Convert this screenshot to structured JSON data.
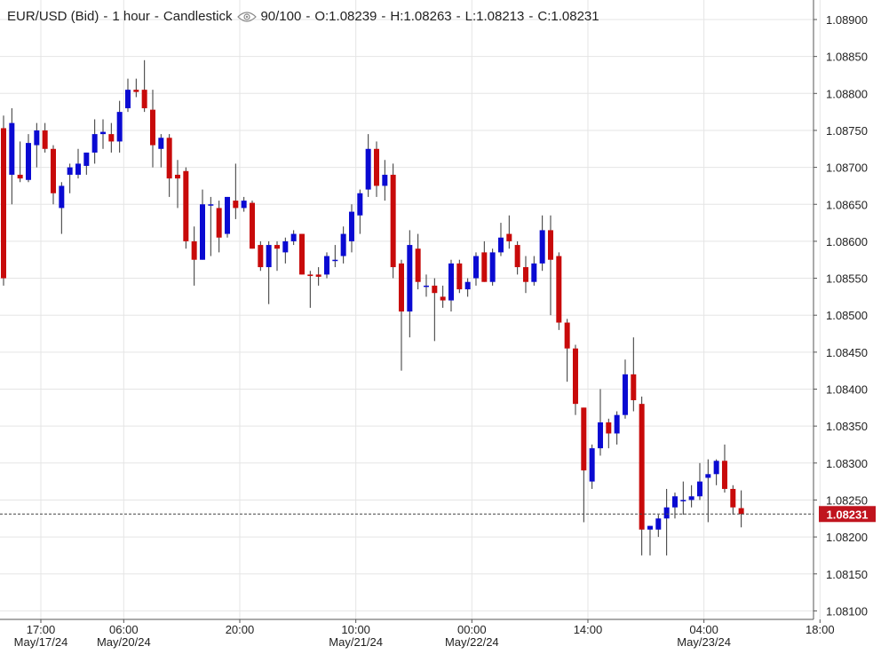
{
  "header": {
    "instrument": "EUR/USD (Bid)",
    "interval": "1 hour",
    "style": "Candlestick",
    "visibility_icon": "eye-icon",
    "bars": "90/100",
    "open": "O:1.08239",
    "high": "H:1.08263",
    "low": "L:1.08213",
    "close": "C:1.08231"
  },
  "colors": {
    "up": "#0a0ad2",
    "down": "#c80a0a",
    "wick": "#333333",
    "grid": "#e5e5e5",
    "axis": "#555555",
    "last_price_bg": "#c0141e",
    "last_price_text": "#ffffff"
  },
  "chart_data": {
    "type": "candlestick",
    "instrument": "EUR/USD (Bid)",
    "interval": "1 hour",
    "ylim": [
      1.08075,
      1.08925
    ],
    "y_ticks": [
      1.081,
      1.0815,
      1.082,
      1.0825,
      1.083,
      1.0835,
      1.084,
      1.0845,
      1.085,
      1.0855,
      1.086,
      1.0865,
      1.087,
      1.0875,
      1.088,
      1.0885,
      1.089
    ],
    "y_tick_labels": [
      "1.08100",
      "1.08150",
      "1.08200",
      "1.08250",
      "1.08300",
      "1.08350",
      "1.08400",
      "1.08450",
      "1.08500",
      "1.08550",
      "1.08600",
      "1.08650",
      "1.08700",
      "1.08750",
      "1.08800",
      "1.08850",
      "1.08900"
    ],
    "x_ticks": [
      {
        "bar": 4.5,
        "label": "17:00",
        "date": "May/17/24"
      },
      {
        "bar": 14.5,
        "label": "06:00",
        "date": "May/20/24"
      },
      {
        "bar": 28.5,
        "label": "20:00",
        "date": ""
      },
      {
        "bar": 42.5,
        "label": "10:00",
        "date": "May/21/24"
      },
      {
        "bar": 56.5,
        "label": "00:00",
        "date": "May/22/24"
      },
      {
        "bar": 70.5,
        "label": "14:00",
        "date": ""
      },
      {
        "bar": 84.5,
        "label": "04:00",
        "date": "May/23/24"
      },
      {
        "bar": 98.5,
        "label": "18:00",
        "date": ""
      }
    ],
    "last_price": "1.08231",
    "last_price_value": 1.08231,
    "candles": [
      {
        "o": 1.08753,
        "h": 1.0877,
        "l": 1.0854,
        "c": 1.0855
      },
      {
        "o": 1.0869,
        "h": 1.0878,
        "l": 1.0865,
        "c": 1.0876
      },
      {
        "o": 1.0869,
        "h": 1.08735,
        "l": 1.0868,
        "c": 1.08685
      },
      {
        "o": 1.08683,
        "h": 1.08745,
        "l": 1.0868,
        "c": 1.08733
      },
      {
        "o": 1.0873,
        "h": 1.0876,
        "l": 1.087,
        "c": 1.0875
      },
      {
        "o": 1.0875,
        "h": 1.0876,
        "l": 1.0872,
        "c": 1.08725
      },
      {
        "o": 1.08725,
        "h": 1.0873,
        "l": 1.0865,
        "c": 1.08665
      },
      {
        "o": 1.08645,
        "h": 1.0868,
        "l": 1.0861,
        "c": 1.08675
      },
      {
        "o": 1.0869,
        "h": 1.08705,
        "l": 1.08665,
        "c": 1.087
      },
      {
        "o": 1.0869,
        "h": 1.08725,
        "l": 1.08685,
        "c": 1.08705
      },
      {
        "o": 1.08702,
        "h": 1.0872,
        "l": 1.0869,
        "c": 1.0872
      },
      {
        "o": 1.0872,
        "h": 1.08765,
        "l": 1.08705,
        "c": 1.08745
      },
      {
        "o": 1.08745,
        "h": 1.08765,
        "l": 1.08725,
        "c": 1.08748
      },
      {
        "o": 1.08745,
        "h": 1.0876,
        "l": 1.0872,
        "c": 1.08735
      },
      {
        "o": 1.08735,
        "h": 1.0879,
        "l": 1.0872,
        "c": 1.08775
      },
      {
        "o": 1.0878,
        "h": 1.0882,
        "l": 1.08775,
        "c": 1.08805
      },
      {
        "o": 1.08805,
        "h": 1.0882,
        "l": 1.08795,
        "c": 1.08802
      },
      {
        "o": 1.08805,
        "h": 1.08845,
        "l": 1.08775,
        "c": 1.0878
      },
      {
        "o": 1.08778,
        "h": 1.08805,
        "l": 1.087,
        "c": 1.0873
      },
      {
        "o": 1.08725,
        "h": 1.08745,
        "l": 1.087,
        "c": 1.0874
      },
      {
        "o": 1.0874,
        "h": 1.08745,
        "l": 1.0866,
        "c": 1.08685
      },
      {
        "o": 1.0869,
        "h": 1.0871,
        "l": 1.08645,
        "c": 1.08685
      },
      {
        "o": 1.08695,
        "h": 1.087,
        "l": 1.0859,
        "c": 1.086
      },
      {
        "o": 1.086,
        "h": 1.0862,
        "l": 1.0854,
        "c": 1.08575
      },
      {
        "o": 1.08575,
        "h": 1.0867,
        "l": 1.08575,
        "c": 1.0865
      },
      {
        "o": 1.0865,
        "h": 1.0866,
        "l": 1.0858,
        "c": 1.0865
      },
      {
        "o": 1.08645,
        "h": 1.08655,
        "l": 1.08585,
        "c": 1.08605
      },
      {
        "o": 1.0861,
        "h": 1.0866,
        "l": 1.08605,
        "c": 1.0866
      },
      {
        "o": 1.08655,
        "h": 1.08705,
        "l": 1.0863,
        "c": 1.08645
      },
      {
        "o": 1.08645,
        "h": 1.0866,
        "l": 1.0864,
        "c": 1.08655
      },
      {
        "o": 1.08652,
        "h": 1.08655,
        "l": 1.0859,
        "c": 1.0859
      },
      {
        "o": 1.08595,
        "h": 1.086,
        "l": 1.0856,
        "c": 1.08565
      },
      {
        "o": 1.08565,
        "h": 1.086,
        "l": 1.08515,
        "c": 1.08595
      },
      {
        "o": 1.08595,
        "h": 1.086,
        "l": 1.0856,
        "c": 1.0859
      },
      {
        "o": 1.08585,
        "h": 1.08605,
        "l": 1.0857,
        "c": 1.086
      },
      {
        "o": 1.086,
        "h": 1.08615,
        "l": 1.08595,
        "c": 1.0861
      },
      {
        "o": 1.0861,
        "h": 1.0861,
        "l": 1.08555,
        "c": 1.08555
      },
      {
        "o": 1.08555,
        "h": 1.0856,
        "l": 1.0851,
        "c": 1.08553
      },
      {
        "o": 1.08555,
        "h": 1.08565,
        "l": 1.0854,
        "c": 1.08552
      },
      {
        "o": 1.08555,
        "h": 1.08585,
        "l": 1.0855,
        "c": 1.0858
      },
      {
        "o": 1.08575,
        "h": 1.08595,
        "l": 1.08565,
        "c": 1.08575
      },
      {
        "o": 1.0858,
        "h": 1.0862,
        "l": 1.0857,
        "c": 1.0861
      },
      {
        "o": 1.086,
        "h": 1.0865,
        "l": 1.08585,
        "c": 1.0864
      },
      {
        "o": 1.08635,
        "h": 1.0867,
        "l": 1.0861,
        "c": 1.08665
      },
      {
        "o": 1.0867,
        "h": 1.08745,
        "l": 1.0866,
        "c": 1.08725
      },
      {
        "o": 1.08725,
        "h": 1.08735,
        "l": 1.0866,
        "c": 1.08675
      },
      {
        "o": 1.08675,
        "h": 1.0871,
        "l": 1.08655,
        "c": 1.0869
      },
      {
        "o": 1.0869,
        "h": 1.08705,
        "l": 1.0855,
        "c": 1.08565
      },
      {
        "o": 1.0857,
        "h": 1.08575,
        "l": 1.08425,
        "c": 1.08505
      },
      {
        "o": 1.08505,
        "h": 1.08615,
        "l": 1.0847,
        "c": 1.08595
      },
      {
        "o": 1.0859,
        "h": 1.0861,
        "l": 1.08535,
        "c": 1.08545
      },
      {
        "o": 1.0854,
        "h": 1.08555,
        "l": 1.08525,
        "c": 1.0854
      },
      {
        "o": 1.0854,
        "h": 1.0855,
        "l": 1.08465,
        "c": 1.0853
      },
      {
        "o": 1.08525,
        "h": 1.0854,
        "l": 1.0851,
        "c": 1.0852
      },
      {
        "o": 1.0852,
        "h": 1.08575,
        "l": 1.08505,
        "c": 1.0857
      },
      {
        "o": 1.0857,
        "h": 1.08575,
        "l": 1.0853,
        "c": 1.08535
      },
      {
        "o": 1.08535,
        "h": 1.0855,
        "l": 1.08525,
        "c": 1.08545
      },
      {
        "o": 1.0855,
        "h": 1.08585,
        "l": 1.0854,
        "c": 1.0858
      },
      {
        "o": 1.08585,
        "h": 1.086,
        "l": 1.08545,
        "c": 1.08545
      },
      {
        "o": 1.08545,
        "h": 1.0859,
        "l": 1.0854,
        "c": 1.08585
      },
      {
        "o": 1.08585,
        "h": 1.08625,
        "l": 1.0858,
        "c": 1.08605
      },
      {
        "o": 1.0861,
        "h": 1.08635,
        "l": 1.0859,
        "c": 1.086
      },
      {
        "o": 1.08595,
        "h": 1.086,
        "l": 1.08555,
        "c": 1.08565
      },
      {
        "o": 1.08565,
        "h": 1.0858,
        "l": 1.0853,
        "c": 1.08545
      },
      {
        "o": 1.08545,
        "h": 1.0858,
        "l": 1.0854,
        "c": 1.0857
      },
      {
        "o": 1.0857,
        "h": 1.08635,
        "l": 1.0856,
        "c": 1.08615
      },
      {
        "o": 1.08615,
        "h": 1.08635,
        "l": 1.085,
        "c": 1.08575
      },
      {
        "o": 1.0858,
        "h": 1.08585,
        "l": 1.0848,
        "c": 1.0849
      },
      {
        "o": 1.0849,
        "h": 1.08495,
        "l": 1.0841,
        "c": 1.08455
      },
      {
        "o": 1.08455,
        "h": 1.0846,
        "l": 1.08365,
        "c": 1.0838
      },
      {
        "o": 1.08375,
        "h": 1.08375,
        "l": 1.0822,
        "c": 1.0829
      },
      {
        "o": 1.08275,
        "h": 1.08325,
        "l": 1.08265,
        "c": 1.0832
      },
      {
        "o": 1.0832,
        "h": 1.084,
        "l": 1.0831,
        "c": 1.08355
      },
      {
        "o": 1.08355,
        "h": 1.0836,
        "l": 1.0832,
        "c": 1.0834
      },
      {
        "o": 1.0834,
        "h": 1.0837,
        "l": 1.08325,
        "c": 1.08365
      },
      {
        "o": 1.08365,
        "h": 1.0844,
        "l": 1.0836,
        "c": 1.0842
      },
      {
        "o": 1.0842,
        "h": 1.0847,
        "l": 1.0837,
        "c": 1.08385
      },
      {
        "o": 1.0838,
        "h": 1.0839,
        "l": 1.08175,
        "c": 1.0821
      },
      {
        "o": 1.0821,
        "h": 1.08215,
        "l": 1.08175,
        "c": 1.08215
      },
      {
        "o": 1.0821,
        "h": 1.0823,
        "l": 1.082,
        "c": 1.08225
      },
      {
        "o": 1.08225,
        "h": 1.08265,
        "l": 1.08175,
        "c": 1.0824
      },
      {
        "o": 1.0824,
        "h": 1.0826,
        "l": 1.08225,
        "c": 1.08255
      },
      {
        "o": 1.0825,
        "h": 1.08275,
        "l": 1.0823,
        "c": 1.0825
      },
      {
        "o": 1.0825,
        "h": 1.0827,
        "l": 1.0824,
        "c": 1.08255
      },
      {
        "o": 1.08255,
        "h": 1.083,
        "l": 1.0825,
        "c": 1.08275
      },
      {
        "o": 1.0828,
        "h": 1.08305,
        "l": 1.0822,
        "c": 1.08285
      },
      {
        "o": 1.08285,
        "h": 1.08305,
        "l": 1.0827,
        "c": 1.08303
      },
      {
        "o": 1.08303,
        "h": 1.08325,
        "l": 1.0826,
        "c": 1.08265
      },
      {
        "o": 1.08265,
        "h": 1.0827,
        "l": 1.0823,
        "c": 1.0824
      },
      {
        "o": 1.08239,
        "h": 1.08263,
        "l": 1.08213,
        "c": 1.08231
      }
    ]
  }
}
